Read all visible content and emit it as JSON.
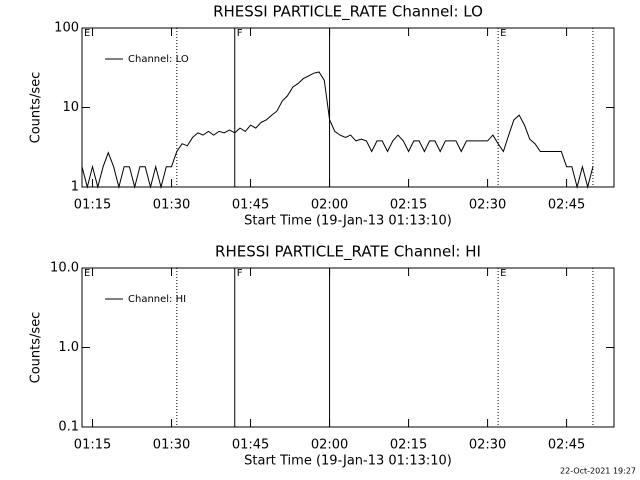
{
  "chart_data": [
    {
      "type": "line",
      "title": "RHESSI PARTICLE_RATE Channel: LO",
      "xlabel": "Start Time (19-Jan-13 01:13:10)",
      "ylabel": "Counts/sec",
      "log_y": true,
      "ylim": [
        1,
        100
      ],
      "yticks": [
        1,
        10,
        100
      ],
      "xlim": [
        "01:13",
        "02:54"
      ],
      "xticks": [
        "01:15",
        "01:30",
        "01:45",
        "02:00",
        "02:15",
        "02:30",
        "02:45"
      ],
      "legend": "upper left",
      "x": [
        "01:13",
        "01:14",
        "01:15",
        "01:16",
        "01:17",
        "01:18",
        "01:19",
        "01:20",
        "01:21",
        "01:22",
        "01:23",
        "01:24",
        "01:25",
        "01:26",
        "01:27",
        "01:28",
        "01:29",
        "01:30",
        "01:31",
        "01:32",
        "01:33",
        "01:34",
        "01:35",
        "01:36",
        "01:37",
        "01:38",
        "01:39",
        "01:40",
        "01:41",
        "01:42",
        "01:43",
        "01:44",
        "01:45",
        "01:46",
        "01:47",
        "01:48",
        "01:49",
        "01:50",
        "01:51",
        "01:52",
        "01:53",
        "01:54",
        "01:55",
        "01:56",
        "01:57",
        "01:58",
        "01:59",
        "02:00",
        "02:01",
        "02:02",
        "02:03",
        "02:04",
        "02:05",
        "02:06",
        "02:07",
        "02:08",
        "02:09",
        "02:10",
        "02:11",
        "02:12",
        "02:13",
        "02:14",
        "02:15",
        "02:16",
        "02:17",
        "02:18",
        "02:19",
        "02:20",
        "02:21",
        "02:22",
        "02:23",
        "02:24",
        "02:25",
        "02:26",
        "02:27",
        "02:28",
        "02:29",
        "02:30",
        "02:31",
        "02:32",
        "02:33",
        "02:34",
        "02:35",
        "02:36",
        "02:37",
        "02:38",
        "02:39",
        "02:40",
        "02:41",
        "02:42",
        "02:43",
        "02:44",
        "02:45",
        "02:46",
        "02:47",
        "02:48",
        "02:49",
        "02:50"
      ],
      "series": [
        {
          "name": "Channel: LO",
          "color": "#000000",
          "values": [
            1.8,
            1,
            1.8,
            1,
            1.8,
            2.7,
            1.8,
            1,
            1.8,
            1.8,
            1,
            1.8,
            1.8,
            1,
            1.8,
            1,
            1.8,
            1.8,
            2.8,
            3.5,
            3.3,
            4.2,
            4.8,
            4.5,
            5,
            4.5,
            5,
            4.8,
            5.2,
            4.8,
            5.5,
            5,
            6,
            5.5,
            6.5,
            7,
            8,
            9,
            12,
            14,
            18,
            20,
            23,
            25,
            27,
            28,
            22,
            7,
            5,
            4.5,
            4.2,
            4.5,
            3.8,
            4,
            3.8,
            2.8,
            3.8,
            3.8,
            2.8,
            3.8,
            4.5,
            3.8,
            2.8,
            3.8,
            3.8,
            2.8,
            3.8,
            3.8,
            2.8,
            3.8,
            3.8,
            3.8,
            2.8,
            3.8,
            3.8,
            3.8,
            3.8,
            3.8,
            4.5,
            3.5,
            2.8,
            4.5,
            7,
            8,
            6,
            4,
            3.5,
            2.8,
            2.8,
            2.8,
            2.8,
            2.8,
            1.8,
            1.8,
            1,
            1.8,
            1,
            1.8
          ]
        }
      ],
      "vlines": [
        {
          "x": "01:31",
          "style": "dotted"
        },
        {
          "x": "01:42",
          "style": "solid"
        },
        {
          "x": "02:00",
          "style": "solid"
        },
        {
          "x": "02:32",
          "style": "dotted"
        },
        {
          "x": "02:50",
          "style": "dotted"
        }
      ],
      "flags": [
        {
          "x": "01:13",
          "text": "E"
        },
        {
          "x": "01:42",
          "text": "F"
        },
        {
          "x": "02:32",
          "text": "E"
        }
      ]
    },
    {
      "type": "line",
      "title": "RHESSI PARTICLE_RATE Channel: HI",
      "xlabel": "Start Time (19-Jan-13 01:13:10)",
      "ylabel": "Counts/sec",
      "log_y": true,
      "ylim": [
        0.1,
        10
      ],
      "yticks": [
        0.1,
        {
          "value": 1,
          "label": "1.0"
        },
        {
          "value": 10,
          "label": "10.0"
        }
      ],
      "xlim": [
        "01:13",
        "02:54"
      ],
      "xticks": [
        "01:15",
        "01:30",
        "01:45",
        "02:00",
        "02:15",
        "02:30",
        "02:45"
      ],
      "legend": "upper left",
      "x": [],
      "series": [
        {
          "name": "Channel: HI",
          "color": "#000000",
          "values": []
        }
      ],
      "vlines": [
        {
          "x": "01:31",
          "style": "dotted"
        },
        {
          "x": "01:42",
          "style": "solid"
        },
        {
          "x": "02:00",
          "style": "solid"
        },
        {
          "x": "02:32",
          "style": "dotted"
        },
        {
          "x": "02:50",
          "style": "dotted"
        }
      ],
      "flags": [
        {
          "x": "01:13",
          "text": "E"
        },
        {
          "x": "01:42",
          "text": "F"
        },
        {
          "x": "02:32",
          "text": "E"
        }
      ]
    }
  ],
  "footer": {
    "timestamp": "22-Oct-2021 19:27"
  }
}
